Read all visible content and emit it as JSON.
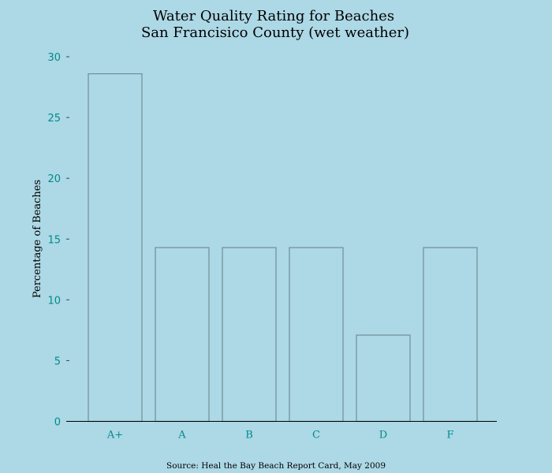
{
  "chart_data": {
    "type": "bar",
    "title_lines": [
      "Water Quality Rating for Beaches",
      "San Francisico County (wet weather)"
    ],
    "xlabel": "",
    "ylabel": "Percentage of Beaches",
    "categories": [
      "A+",
      "A",
      "B",
      "C",
      "D",
      "F"
    ],
    "values": [
      28.6,
      14.3,
      14.3,
      14.3,
      7.1,
      14.3
    ],
    "ylim": [
      0,
      30
    ],
    "yticks": [
      "0",
      "5",
      "10",
      "15",
      "20",
      "25",
      "30"
    ],
    "grid": false,
    "source": "Source: Heal the Bay Beach Report Card, May 2009",
    "colors": {
      "background": "#add8e6",
      "bar_fill": "#add8e6",
      "bar_edge": "#6e8f96",
      "tick_label": "#008b8b"
    }
  }
}
